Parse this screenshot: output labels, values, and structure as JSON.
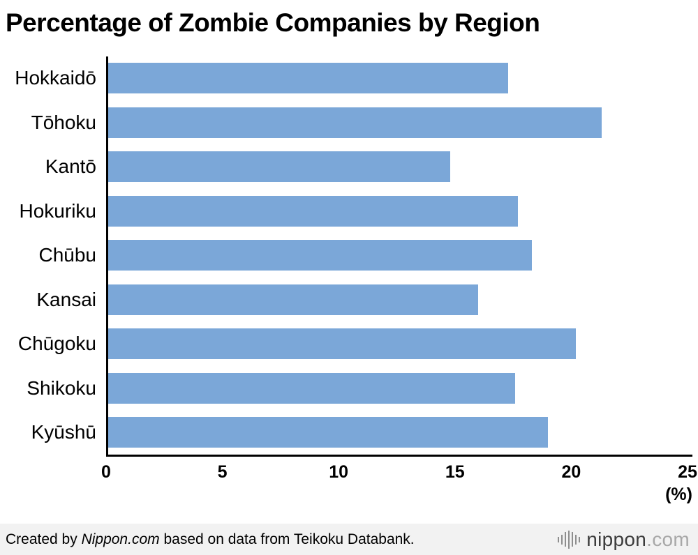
{
  "title": "Percentage of Zombie Companies by Region",
  "chart_data": {
    "type": "bar",
    "orientation": "horizontal",
    "title": "Percentage of Zombie Companies by Region",
    "categories": [
      "Hokkaidō",
      "Tōhoku",
      "Kantō",
      "Hokuriku",
      "Chūbu",
      "Kansai",
      "Chūgoku",
      "Shikoku",
      "Kyūshū"
    ],
    "values": [
      17.3,
      21.3,
      14.8,
      17.7,
      18.3,
      16.0,
      20.2,
      17.6,
      19.0
    ],
    "xlabel": "(%)",
    "ylabel": "",
    "xlim": [
      0,
      25
    ],
    "x_ticks": [
      0,
      5,
      10,
      15,
      20,
      25
    ],
    "unit_label": "(%)",
    "bar_color": "#7ba7d8",
    "grid": false,
    "legend": false
  },
  "footer": {
    "credit_prefix": "Created by ",
    "credit_brand": "Nippon.com",
    "credit_suffix": " based on data from Teikoku Databank.",
    "logo_text_main": "nippon",
    "logo_text_suffix": ".com"
  }
}
